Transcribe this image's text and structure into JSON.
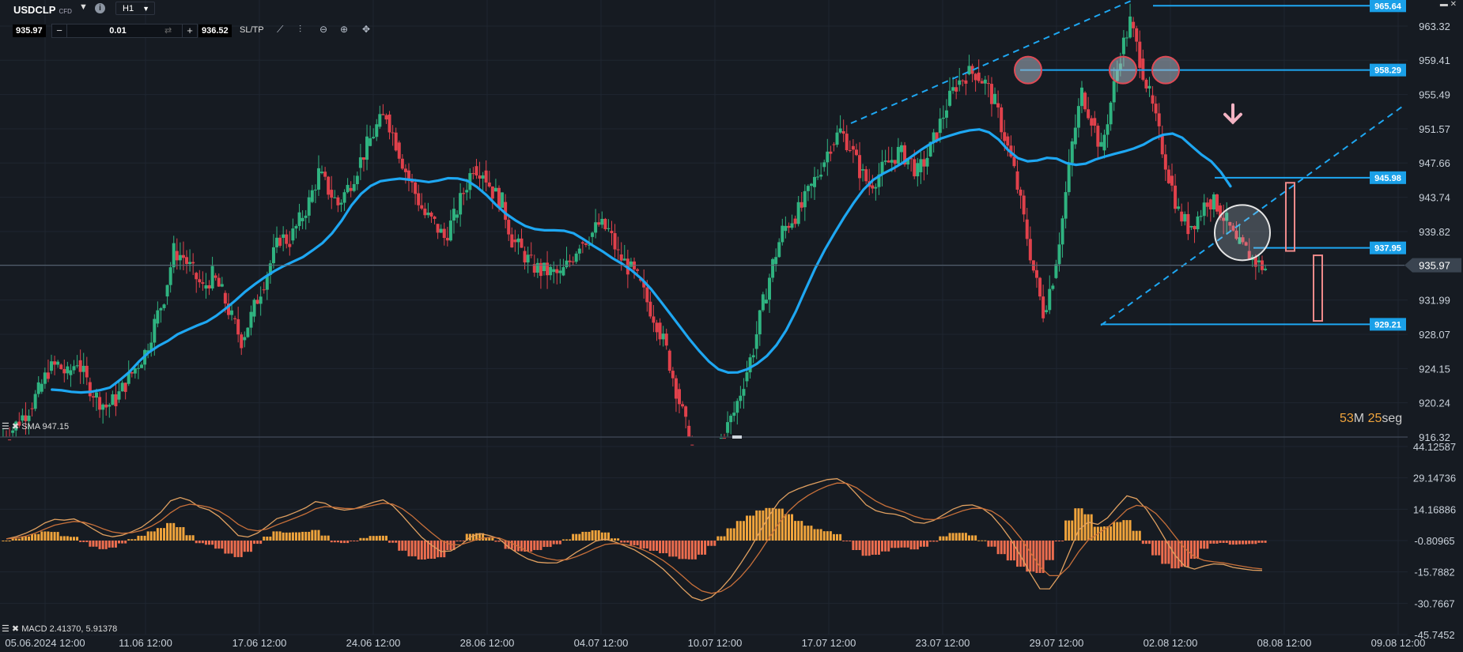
{
  "toolbar": {
    "symbol": "USDCLP",
    "symbol_tag": "CFD",
    "timeframe": "H1",
    "bid": "935.97",
    "ask": "936.52",
    "lot": "0.01",
    "minus": "−",
    "plus": "+",
    "sltp": "SL/TP",
    "info": "i",
    "window_icons": "▬ ✕"
  },
  "indicators": {
    "sma_label": "SMA 947.15",
    "macd_label": "MACD 2.41370, 5.91378"
  },
  "countdown": {
    "minutes": "53",
    "m_unit": "M",
    "seconds": "25",
    "s_unit": "seg"
  },
  "colors": {
    "background": "#161b22",
    "bull": "#2fb380",
    "bear": "#e0414b",
    "sma": "#1ea7f2",
    "trend": "#1ea7f2",
    "label_bg": "#1aa0e8",
    "hist_pos": "#f0a43c",
    "hist_neg": "#ec6d4f",
    "macd_line": "#e0a060",
    "signal_line": "#c8703a",
    "annotation": "#ef8a8a"
  },
  "chart_data": [
    {
      "type": "candlestick",
      "title": "",
      "y_axis_ticks": [
        963.32,
        959.41,
        955.49,
        951.57,
        947.66,
        943.74,
        939.82,
        935.9,
        931.99,
        928.07,
        924.15,
        920.24,
        916.32
      ],
      "y_axis_tick_labels": [
        "963.32",
        "959.41",
        "955.49",
        "951.57",
        "947.66",
        "943.74",
        "939.82",
        "935.90",
        "931.99",
        "928.07",
        "924.15",
        "920.24",
        "916.32"
      ],
      "ylim": [
        916.32,
        966.3
      ],
      "x_tick_labels": [
        "05.06.2024 12:00",
        "11.06 12:00",
        "17.06 12:00",
        "24.06 12:00",
        "28.06 12:00",
        "04.07 12:00",
        "10.07 12:00",
        "17.07 12:00",
        "23.07 12:00",
        "29.07 12:00",
        "02.08 12:00",
        "08.08 12:00",
        "09.08 12:00"
      ],
      "current_price": 935.97,
      "current_price_label": "935.97",
      "price_lines": [
        {
          "value": 965.64,
          "label": "965.64"
        },
        {
          "value": 958.29,
          "label": "958.29"
        },
        {
          "value": 945.98,
          "label": "945.98"
        },
        {
          "value": 937.95,
          "label": "937.95"
        },
        {
          "value": 929.21,
          "label": "929.21"
        }
      ],
      "close_series": [
        916.8,
        918.2,
        919.6,
        921.5,
        923.9,
        924.6,
        923.4,
        925.1,
        922.6,
        920.9,
        919.8,
        920.6,
        922.4,
        924.2,
        926.0,
        929.3,
        932.4,
        937.6,
        936.9,
        935.1,
        933.3,
        934.8,
        932.8,
        929.9,
        927.4,
        930.1,
        933.2,
        936.2,
        939.1,
        938.8,
        941.0,
        943.2,
        946.5,
        944.6,
        942.9,
        944.8,
        947.1,
        949.6,
        951.8,
        953.2,
        950.0,
        946.8,
        944.2,
        941.7,
        940.7,
        939.1,
        941.4,
        944.3,
        947.3,
        946.8,
        944.4,
        943.2,
        938.9,
        937.6,
        936.1,
        935.3,
        935.2,
        934.8,
        936.4,
        938.6,
        939.2,
        940.6,
        939.9,
        937.2,
        935.8,
        934.4,
        931.8,
        929.4,
        926.2,
        921.8,
        917.6,
        914.0,
        913.2,
        914.6,
        916.8,
        919.1,
        922.7,
        926.4,
        931.6,
        936.1,
        939.9,
        941.3,
        942.6,
        944.9,
        947.2,
        949.8,
        951.3,
        949.6,
        946.8,
        945.1,
        946.4,
        947.7,
        948.9,
        948.2,
        946.6,
        948.4,
        951.1,
        954.2,
        956.6,
        957.8,
        958.0,
        956.8,
        954.5,
        950.7,
        946.7,
        941.2,
        935.4,
        930.6,
        934.5,
        941.3,
        949.8,
        955.7,
        952.8,
        949.1,
        954.6,
        960.1,
        963.8,
        959.6,
        955.4,
        950.9,
        946.2,
        942.1,
        940.3,
        941.5,
        943.5,
        942.8,
        940.9,
        938.4,
        937.6,
        936.3,
        935.6
      ],
      "sma_label": "SMA 947.15"
    },
    {
      "type": "macd",
      "y_axis_ticks": [
        44.12587,
        29.14736,
        14.16886,
        -0.80965,
        -15.7882,
        -30.7667,
        -45.7452
      ],
      "y_axis_tick_labels": [
        "44.12587",
        "29.14736",
        "14.16886",
        "-0.80965",
        "-15.7882",
        "-30.7667",
        "-45.7452"
      ],
      "ylim": [
        -45.7452,
        44.12587
      ],
      "series": [
        {
          "name": "MACD",
          "value": 2.4137
        },
        {
          "name": "Signal",
          "value": 5.91378
        }
      ]
    }
  ]
}
